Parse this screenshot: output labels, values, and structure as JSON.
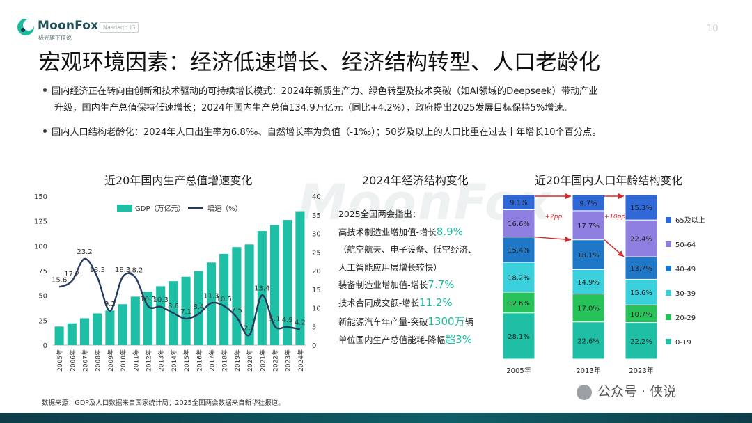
{
  "header": {
    "brand": "MoonFox",
    "brand_sub": "极光旗下侠说",
    "ticker": "Nasdaq : JG",
    "page_number": "10"
  },
  "title": "宏观环境因素：经济低速增长、经济结构转型、人口老龄化",
  "bullets": [
    "国内经济正在转向由创新和技术驱动的可持续增长模式：2024年新质生产力、绿色转型及技术突破（如AI领域的Deepseek）带动产业",
    "升级，国内生产总值保持低速增长；2024年国内生产总值134.9万亿元（同比+4.2%），政府提出2025发展目标保持5%增速。",
    "国内人口结构老龄化：2024年人口出生率为6.8‰、自然增长率为负值（-1‰）；50岁及以上的人口比重在过去十年增长10个百分点。"
  ],
  "watermark": "MoonFox",
  "chart_data": [
    {
      "type": "bar",
      "title": "近20年国内生产总值增速变化",
      "categories": [
        "2005年",
        "2006年",
        "2007年",
        "2008年",
        "2009年",
        "2010年",
        "2011年",
        "2012年",
        "2013年",
        "2014年",
        "2015年",
        "2016年",
        "2017年",
        "2018年",
        "2019年",
        "2020年",
        "2021年",
        "2022年",
        "2023年",
        "2024年"
      ],
      "series": [
        {
          "name": "GDP（万亿元）",
          "type": "bar",
          "axis": "left",
          "color": "#1fbfa6",
          "values": [
            18.7,
            21.9,
            27.0,
            31.9,
            34.9,
            41.2,
            48.8,
            53.9,
            59.3,
            64.4,
            68.9,
            74.6,
            83.2,
            91.9,
            98.7,
            101.4,
            114.9,
            121.0,
            126.1,
            134.9
          ]
        },
        {
          "name": "增速（%）",
          "type": "line",
          "axis": "right",
          "color": "#243a5e",
          "values": [
            15.6,
            17.2,
            23.2,
            18.3,
            9.2,
            18.3,
            18.2,
            10.5,
            10.3,
            8.6,
            7.1,
            8.4,
            11.3,
            10.5,
            7.5,
            2.7,
            13.4,
            5.1,
            4.9,
            4.2
          ],
          "labels": [
            "15.6",
            "17.2",
            "23.2",
            "18.3",
            "9.2",
            "18.3",
            "18.2",
            "10.5",
            "10.3",
            "8.6",
            "7.1",
            "8.4",
            "11.3",
            "10.5",
            "7.5",
            "2.7",
            "13.4",
            "5.1",
            "4.9",
            "4.2"
          ]
        }
      ],
      "ylim_left": [
        0,
        150
      ],
      "yticks_left": [
        "0",
        "25",
        "50",
        "75",
        "100",
        "125",
        "150"
      ],
      "ylim_right": [
        0,
        40
      ],
      "yticks_right": [
        "0",
        "5",
        "10",
        "15",
        "20",
        "25",
        "30",
        "35",
        "40"
      ],
      "legend": "top-center"
    },
    {
      "type": "bar",
      "stacked": true,
      "percent": true,
      "title": "近20年国内人口年龄结构变化",
      "categories": [
        "2005年",
        "2013年",
        "2023年"
      ],
      "series": [
        {
          "name": "0-19",
          "color": "#1fbfa6",
          "values": [
            28.1,
            22.6,
            22.2
          ],
          "labels": [
            "28.1%",
            "22.6%",
            "22.2%"
          ]
        },
        {
          "name": "20-29",
          "color": "#27c25a",
          "values": [
            12.6,
            17.0,
            10.7
          ],
          "labels": [
            "12.6%",
            "17.0%",
            "10.7%"
          ]
        },
        {
          "name": "30-39",
          "color": "#3ad0dc",
          "values": [
            18.2,
            14.9,
            15.6
          ],
          "labels": [
            "18.2%",
            "14.9%",
            "15.6%"
          ]
        },
        {
          "name": "40-49",
          "color": "#1f77c8",
          "values": [
            15.4,
            18.1,
            13.7
          ],
          "labels": [
            "15.4%",
            "18.1%",
            "13.7%"
          ]
        },
        {
          "name": "50-64",
          "color": "#8f7fe0",
          "values": [
            16.6,
            17.7,
            22.4
          ],
          "labels": [
            "16.6%",
            "17.7%",
            "22.4%"
          ]
        },
        {
          "name": "65及以上",
          "color": "#2f69d8",
          "values": [
            9.1,
            9.7,
            15.3
          ],
          "labels": [
            "9.1%",
            "9.7%",
            "15.3%"
          ]
        }
      ],
      "annotations": [
        "+2pp",
        "+10pp"
      ],
      "legend": "right"
    }
  ],
  "economic_structure": {
    "title": "2024年经济结构变化",
    "rows": [
      {
        "text": "2025全国两会指出：",
        "highlight": ""
      },
      {
        "text": "高技术制造业增加值-增长",
        "highlight": "8.9%"
      },
      {
        "text": "（航空航天、电子设备、低空经济、",
        "highlight": ""
      },
      {
        "text": "人工智能应用层增长较快）",
        "highlight": ""
      },
      {
        "text": "装备制造业增加值-增长",
        "highlight": "7.7%"
      },
      {
        "text": "技术合同成交额-增长",
        "highlight": "11.2%"
      },
      {
        "text": "新能源汽车年产量-突破",
        "highlight": "1300万",
        "suffix": "辆"
      },
      {
        "text": "单位国内生产总值能耗-降幅",
        "highlight": "超3%"
      }
    ]
  },
  "source": "数据来源：GDP及人口数据来自国家统计局；2025全国两会数据来自新华社报道。",
  "wechat": "公众号 · 侠说"
}
